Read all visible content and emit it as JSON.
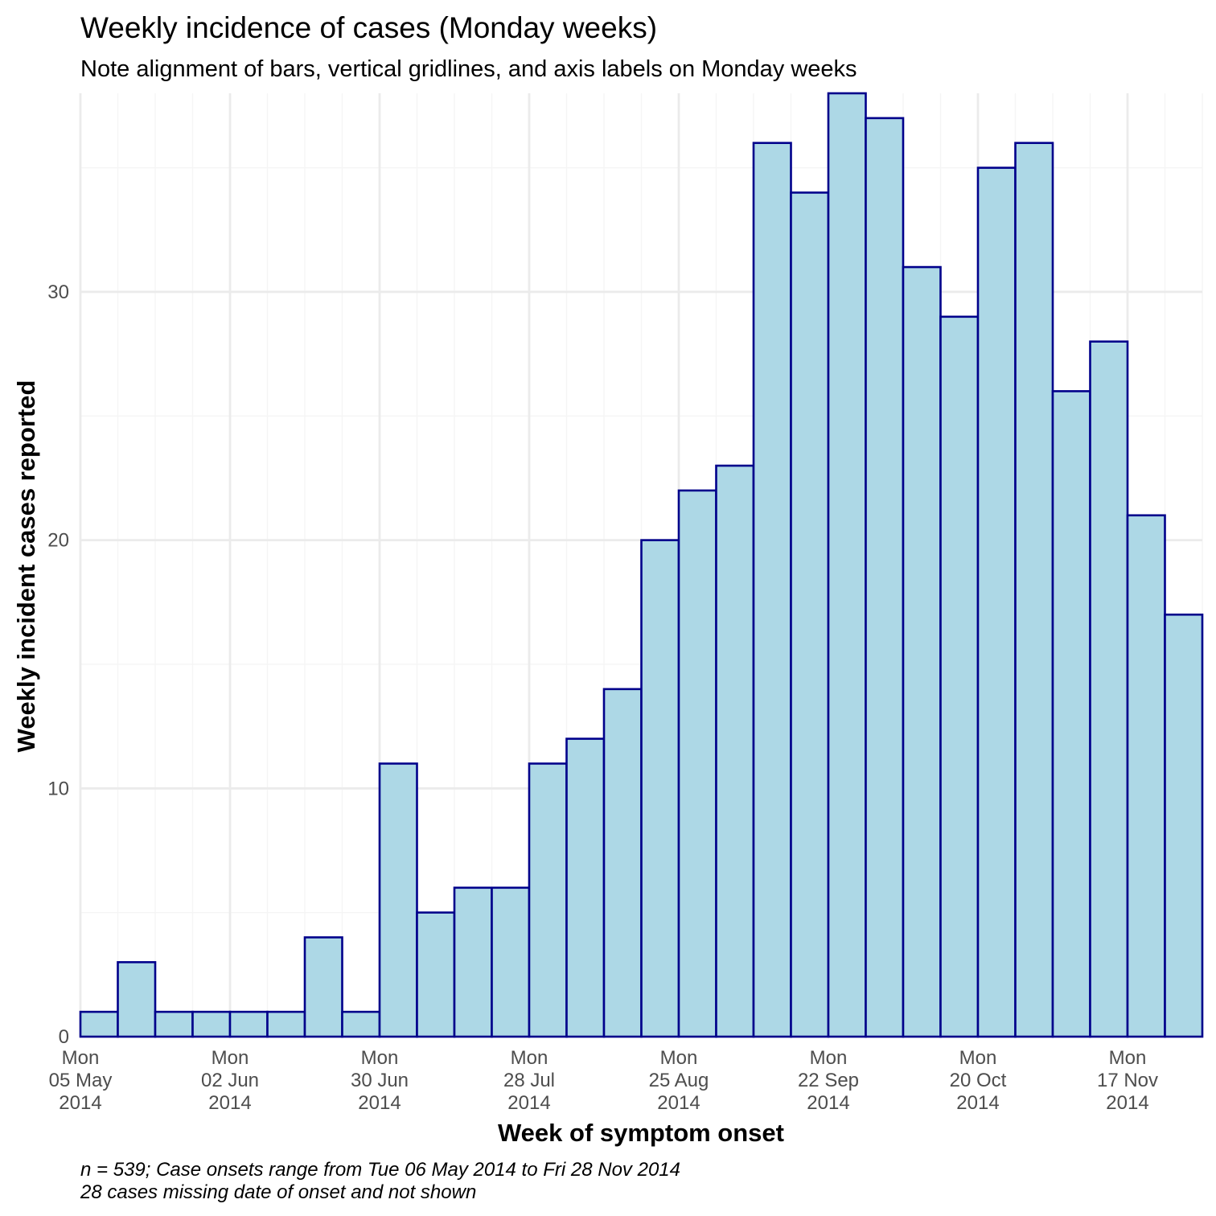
{
  "chart_data": {
    "type": "bar",
    "title": "Weekly incidence of cases (Monday weeks)",
    "subtitle": "Note alignment of bars, vertical gridlines, and axis labels on Monday weeks",
    "xlabel": "Week of symptom onset",
    "ylabel": "Weekly incident cases reported",
    "caption_lines": [
      "n = 539; Case onsets range from Tue 06 May 2014 to Fri 28 Nov 2014",
      "28 cases missing date of onset and not shown"
    ],
    "ylim": [
      0,
      38
    ],
    "y_ticks": [
      0,
      10,
      20,
      30
    ],
    "x_range": [
      "2014-05-05",
      "2014-12-01"
    ],
    "grid": true,
    "bin_width_days": 7,
    "weeks": [
      "2014-05-05",
      "2014-05-12",
      "2014-05-19",
      "2014-05-26",
      "2014-06-02",
      "2014-06-09",
      "2014-06-16",
      "2014-06-23",
      "2014-06-30",
      "2014-07-07",
      "2014-07-14",
      "2014-07-21",
      "2014-07-28",
      "2014-08-04",
      "2014-08-11",
      "2014-08-18",
      "2014-08-25",
      "2014-09-01",
      "2014-09-08",
      "2014-09-15",
      "2014-09-22",
      "2014-09-29",
      "2014-10-06",
      "2014-10-13",
      "2014-10-20",
      "2014-10-27",
      "2014-11-03",
      "2014-11-10",
      "2014-11-17",
      "2014-11-24"
    ],
    "values": [
      1,
      3,
      1,
      1,
      1,
      1,
      4,
      1,
      11,
      5,
      6,
      6,
      11,
      12,
      14,
      20,
      22,
      23,
      36,
      34,
      38,
      37,
      31,
      29,
      35,
      36,
      26,
      28,
      21,
      17
    ],
    "x_ticks": [
      {
        "date": "2014-05-05",
        "lines": [
          "Mon",
          "05 May",
          "2014"
        ]
      },
      {
        "date": "2014-06-02",
        "lines": [
          "Mon",
          "02 Jun",
          "2014"
        ]
      },
      {
        "date": "2014-06-30",
        "lines": [
          "Mon",
          "30 Jun",
          "2014"
        ]
      },
      {
        "date": "2014-07-28",
        "lines": [
          "Mon",
          "28 Jul",
          "2014"
        ]
      },
      {
        "date": "2014-08-25",
        "lines": [
          "Mon",
          "25 Aug",
          "2014"
        ]
      },
      {
        "date": "2014-09-22",
        "lines": [
          "Mon",
          "22 Sep",
          "2014"
        ]
      },
      {
        "date": "2014-10-20",
        "lines": [
          "Mon",
          "20 Oct",
          "2014"
        ]
      },
      {
        "date": "2014-11-17",
        "lines": [
          "Mon",
          "17 Nov",
          "2014"
        ]
      }
    ],
    "colors": {
      "bar_fill": "#add8e6",
      "bar_stroke": "#00008b",
      "grid_major": "#ebebeb",
      "grid_minor": "#f5f5f5",
      "tick_text": "#4d4d4d"
    }
  }
}
